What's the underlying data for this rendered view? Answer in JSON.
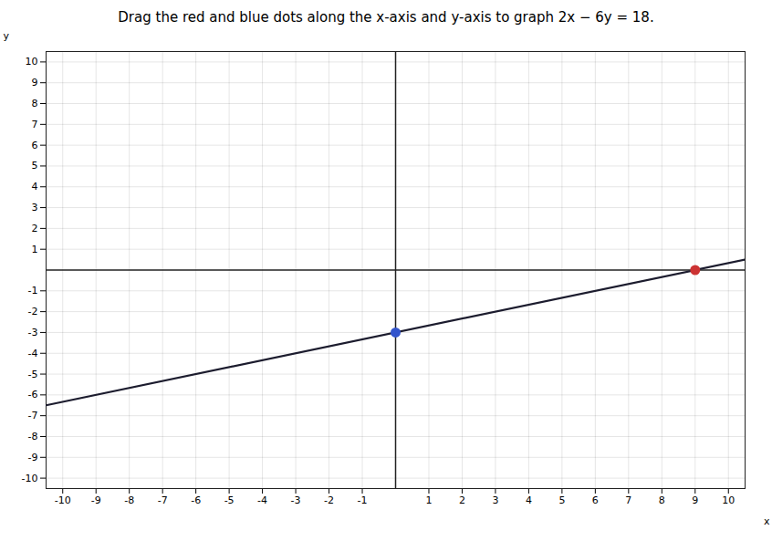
{
  "chart_data": {
    "type": "line",
    "title": "Drag the red and blue dots along the x-axis and y-axis to graph 2x − 6y = 18.",
    "xlabel": "x",
    "ylabel": "y",
    "xlim": [
      -10.5,
      10.5
    ],
    "ylim": [
      -10.5,
      10.5
    ],
    "xticks": [
      -10,
      -9,
      -8,
      -7,
      -6,
      -5,
      -4,
      -3,
      -2,
      -1,
      1,
      2,
      3,
      4,
      5,
      6,
      7,
      8,
      9,
      10
    ],
    "yticks": [
      -10,
      -9,
      -8,
      -7,
      -6,
      -5,
      -4,
      -3,
      -2,
      -1,
      1,
      2,
      3,
      4,
      5,
      6,
      7,
      8,
      9,
      10
    ],
    "grid": true,
    "series": [
      {
        "type": "line",
        "color": "#1c1c2e",
        "x": [
          -10.5,
          10.5
        ],
        "values": [
          -6.5,
          0.5
        ]
      },
      {
        "type": "scatter",
        "color": "#3355cc",
        "x": [
          0
        ],
        "values": [
          -3
        ]
      },
      {
        "type": "scatter",
        "color": "#cc3333",
        "x": [
          9
        ],
        "values": [
          0
        ]
      }
    ]
  }
}
